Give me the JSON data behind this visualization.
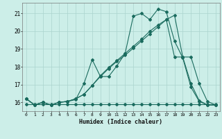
{
  "xlabel": "Humidex (Indice chaleur)",
  "ylabel": "",
  "bg_color": "#cceee8",
  "line_color": "#1a6b5e",
  "grid_color": "#aad4ce",
  "xlim": [
    -0.5,
    23.5
  ],
  "ylim": [
    15.5,
    21.6
  ],
  "yticks": [
    16,
    17,
    18,
    19,
    20,
    21
  ],
  "xticks": [
    0,
    1,
    2,
    3,
    4,
    5,
    6,
    7,
    8,
    9,
    10,
    11,
    12,
    13,
    14,
    15,
    16,
    17,
    18,
    19,
    20,
    21,
    22,
    23
  ],
  "line1_x": [
    0,
    1,
    2,
    3,
    4,
    5,
    6,
    7,
    8,
    9,
    10,
    11,
    12,
    13,
    14,
    15,
    16,
    17,
    18,
    19,
    20,
    21,
    22,
    23
  ],
  "line1_y": [
    16.2,
    15.85,
    16.0,
    15.85,
    16.0,
    16.05,
    16.15,
    17.05,
    18.4,
    17.45,
    17.45,
    18.05,
    18.75,
    20.85,
    21.0,
    20.65,
    21.25,
    21.1,
    19.45,
    18.5,
    16.85,
    16.05,
    15.85,
    15.85
  ],
  "line2_x": [
    0,
    1,
    2,
    3,
    4,
    5,
    6,
    7,
    8,
    9,
    10,
    11,
    12,
    13,
    14,
    15,
    16,
    17,
    18,
    19,
    20,
    21,
    22,
    23
  ],
  "line2_y": [
    16.2,
    15.85,
    16.0,
    15.85,
    16.0,
    16.05,
    16.2,
    16.45,
    16.95,
    17.5,
    17.95,
    18.35,
    18.75,
    19.15,
    19.55,
    20.0,
    20.35,
    20.65,
    20.9,
    18.55,
    18.55,
    17.05,
    16.05,
    15.85
  ],
  "line3_x": [
    0,
    1,
    2,
    3,
    4,
    5,
    6,
    7,
    8,
    9,
    10,
    11,
    12,
    13,
    14,
    15,
    16,
    17,
    18,
    19,
    20,
    21,
    22,
    23
  ],
  "line3_y": [
    16.2,
    15.85,
    16.0,
    15.85,
    16.0,
    16.05,
    16.2,
    16.45,
    16.95,
    17.45,
    17.9,
    18.3,
    18.65,
    19.05,
    19.45,
    19.85,
    20.25,
    20.65,
    18.55,
    18.55,
    17.05,
    16.1,
    15.85,
    15.85
  ],
  "line4_x": [
    0,
    1,
    2,
    3,
    4,
    5,
    6,
    7,
    8,
    9,
    10,
    11,
    12,
    13,
    14,
    15,
    16,
    17,
    18,
    19,
    20,
    21,
    22,
    23
  ],
  "line4_y": [
    15.9,
    15.9,
    15.9,
    15.9,
    15.9,
    15.9,
    15.9,
    15.9,
    15.9,
    15.9,
    15.9,
    15.9,
    15.9,
    15.9,
    15.9,
    15.9,
    15.9,
    15.9,
    15.9,
    15.9,
    15.9,
    15.9,
    15.9,
    15.9
  ]
}
